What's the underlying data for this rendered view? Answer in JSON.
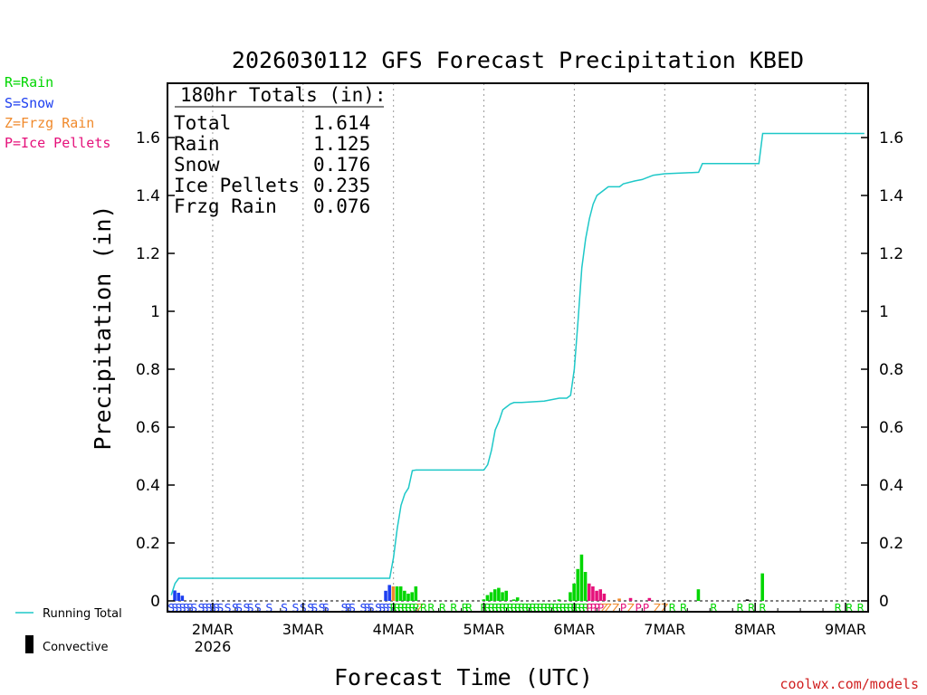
{
  "colors": {
    "rain": "#00d600",
    "snow": "#1c3ef0",
    "freezing_rain": "#f08a2c",
    "ice_pellets": "#e5107a",
    "running_total": "#1ec8c8",
    "convective": "#000000",
    "attribution": "#d02020",
    "grid": "#9a9a9a"
  },
  "legend": {
    "rain": "R=Rain",
    "snow": "S=Snow",
    "freezing_rain": "Z=Frzg Rain",
    "ice_pellets": "P=Ice Pellets",
    "running_total": "Running Total",
    "convective": "Convective"
  },
  "totals_box": {
    "header": "180hr Totals (in):",
    "rows": [
      {
        "label": "Total",
        "value": "1.614"
      },
      {
        "label": "Rain",
        "value": "1.125"
      },
      {
        "label": "Snow",
        "value": "0.176"
      },
      {
        "label": "Ice Pellets",
        "value": "0.235"
      },
      {
        "label": "Frzg Rain",
        "value": "0.076"
      }
    ]
  },
  "attribution": "coolwx.com/models",
  "chart_data": {
    "type": "bar",
    "title": "2026030112 GFS Forecast Precipitation KBED",
    "xlabel": "Forecast Time (UTC)",
    "ylabel": "Precipitation (in)",
    "x_units": "hours since 2026-03-01 12Z",
    "xlim": [
      0,
      186
    ],
    "ylim": [
      0,
      1.8
    ],
    "yticks": [
      0,
      0.2,
      0.4,
      0.6,
      0.8,
      1,
      1.2,
      1.4,
      1.6
    ],
    "ytick_labels": [
      "0",
      "0.2",
      "0.4",
      "0.6",
      "0.8",
      "1",
      "1.2",
      "1.4",
      "1.6"
    ],
    "xticks": [
      {
        "x": 12,
        "label": "2MAR",
        "sublabel": "2026"
      },
      {
        "x": 36,
        "label": "3MAR",
        "sublabel": ""
      },
      {
        "x": 60,
        "label": "4MAR",
        "sublabel": ""
      },
      {
        "x": 84,
        "label": "5MAR",
        "sublabel": ""
      },
      {
        "x": 108,
        "label": "6MAR",
        "sublabel": ""
      },
      {
        "x": 132,
        "label": "7MAR",
        "sublabel": ""
      },
      {
        "x": 156,
        "label": "8MAR",
        "sublabel": ""
      },
      {
        "x": 180,
        "label": "9MAR",
        "sublabel": ""
      }
    ],
    "bars": [
      {
        "x": 2,
        "w": 1,
        "v": 0.036,
        "t": "S"
      },
      {
        "x": 3,
        "w": 1,
        "v": 0.028,
        "t": "S"
      },
      {
        "x": 4,
        "w": 1,
        "v": 0.018,
        "t": "S"
      },
      {
        "x": 58,
        "w": 1,
        "v": 0.035,
        "t": "S"
      },
      {
        "x": 59,
        "w": 1,
        "v": 0.055,
        "t": "S"
      },
      {
        "x": 60,
        "w": 1,
        "v": 0.05,
        "t": "Z"
      },
      {
        "x": 61,
        "w": 1,
        "v": 0.05,
        "t": "R"
      },
      {
        "x": 62,
        "w": 1,
        "v": 0.05,
        "t": "R"
      },
      {
        "x": 63,
        "w": 1,
        "v": 0.035,
        "t": "R"
      },
      {
        "x": 64,
        "w": 1,
        "v": 0.025,
        "t": "R"
      },
      {
        "x": 65,
        "w": 1,
        "v": 0.03,
        "t": "R"
      },
      {
        "x": 66,
        "w": 1,
        "v": 0.05,
        "t": "R"
      },
      {
        "x": 84,
        "w": 1,
        "v": 0.005,
        "t": "R"
      },
      {
        "x": 85,
        "w": 1,
        "v": 0.02,
        "t": "R"
      },
      {
        "x": 86,
        "w": 1,
        "v": 0.03,
        "t": "R"
      },
      {
        "x": 87,
        "w": 1,
        "v": 0.04,
        "t": "R"
      },
      {
        "x": 88,
        "w": 1,
        "v": 0.045,
        "t": "R"
      },
      {
        "x": 89,
        "w": 1,
        "v": 0.03,
        "t": "R"
      },
      {
        "x": 90,
        "w": 1,
        "v": 0.035,
        "t": "R"
      },
      {
        "x": 92,
        "w": 1,
        "v": 0.005,
        "t": "R"
      },
      {
        "x": 93,
        "w": 1,
        "v": 0.012,
        "t": "R"
      },
      {
        "x": 104,
        "w": 1,
        "v": 0.005,
        "t": "R"
      },
      {
        "x": 107,
        "w": 1,
        "v": 0.03,
        "t": "R"
      },
      {
        "x": 108,
        "w": 1,
        "v": 0.06,
        "t": "R"
      },
      {
        "x": 109,
        "w": 1,
        "v": 0.11,
        "t": "R"
      },
      {
        "x": 110,
        "w": 1,
        "v": 0.16,
        "t": "R"
      },
      {
        "x": 111,
        "w": 1,
        "v": 0.1,
        "t": "R"
      },
      {
        "x": 112,
        "w": 1,
        "v": 0.06,
        "t": "P"
      },
      {
        "x": 113,
        "w": 1,
        "v": 0.05,
        "t": "P"
      },
      {
        "x": 114,
        "w": 1,
        "v": 0.035,
        "t": "P"
      },
      {
        "x": 115,
        "w": 1,
        "v": 0.04,
        "t": "P"
      },
      {
        "x": 116,
        "w": 1,
        "v": 0.025,
        "t": "P"
      },
      {
        "x": 120,
        "w": 1,
        "v": 0.008,
        "t": "Z"
      },
      {
        "x": 123,
        "w": 1,
        "v": 0.01,
        "t": "P"
      },
      {
        "x": 128,
        "w": 1,
        "v": 0.01,
        "t": "P"
      },
      {
        "x": 141,
        "w": 1,
        "v": 0.04,
        "t": "R"
      },
      {
        "x": 154,
        "w": 1,
        "v": 0.005,
        "t": "C"
      },
      {
        "x": 158,
        "w": 1,
        "v": 0.095,
        "t": "R"
      }
    ],
    "ptype_strip": [
      {
        "x": 1,
        "t": "S"
      },
      {
        "x": 2,
        "t": "S"
      },
      {
        "x": 3,
        "t": "S"
      },
      {
        "x": 4,
        "t": "S"
      },
      {
        "x": 5,
        "t": "S"
      },
      {
        "x": 6,
        "t": "S"
      },
      {
        "x": 7,
        "t": "S"
      },
      {
        "x": 9,
        "t": "S"
      },
      {
        "x": 10,
        "t": "S"
      },
      {
        "x": 11,
        "t": "S"
      },
      {
        "x": 12,
        "t": "S"
      },
      {
        "x": 13,
        "t": "S"
      },
      {
        "x": 14,
        "t": "S"
      },
      {
        "x": 16,
        "t": "S"
      },
      {
        "x": 18,
        "t": "S"
      },
      {
        "x": 19,
        "t": "S"
      },
      {
        "x": 21,
        "t": "S"
      },
      {
        "x": 22,
        "t": "S"
      },
      {
        "x": 24,
        "t": "S"
      },
      {
        "x": 27,
        "t": "S"
      },
      {
        "x": 31,
        "t": "S"
      },
      {
        "x": 34,
        "t": "S"
      },
      {
        "x": 36,
        "t": "S"
      },
      {
        "x": 38,
        "t": "S"
      },
      {
        "x": 39,
        "t": "S"
      },
      {
        "x": 41,
        "t": "S"
      },
      {
        "x": 42,
        "t": "S"
      },
      {
        "x": 47,
        "t": "S"
      },
      {
        "x": 48,
        "t": "S"
      },
      {
        "x": 49,
        "t": "S"
      },
      {
        "x": 52,
        "t": "S"
      },
      {
        "x": 53,
        "t": "S"
      },
      {
        "x": 54,
        "t": "S"
      },
      {
        "x": 56,
        "t": "S"
      },
      {
        "x": 57,
        "t": "S"
      },
      {
        "x": 58,
        "t": "S"
      },
      {
        "x": 59,
        "t": "S"
      },
      {
        "x": 60,
        "t": "R"
      },
      {
        "x": 61,
        "t": "R"
      },
      {
        "x": 62,
        "t": "R"
      },
      {
        "x": 63,
        "t": "R"
      },
      {
        "x": 64,
        "t": "R"
      },
      {
        "x": 65,
        "t": "R"
      },
      {
        "x": 66,
        "t": "R"
      },
      {
        "x": 67,
        "t": "Z"
      },
      {
        "x": 68,
        "t": "R"
      },
      {
        "x": 70,
        "t": "R"
      },
      {
        "x": 73,
        "t": "R"
      },
      {
        "x": 76,
        "t": "R"
      },
      {
        "x": 79,
        "t": "R"
      },
      {
        "x": 80,
        "t": "R"
      },
      {
        "x": 84,
        "t": "R"
      },
      {
        "x": 85,
        "t": "R"
      },
      {
        "x": 86,
        "t": "R"
      },
      {
        "x": 87,
        "t": "R"
      },
      {
        "x": 88,
        "t": "R"
      },
      {
        "x": 89,
        "t": "R"
      },
      {
        "x": 90,
        "t": "R"
      },
      {
        "x": 91,
        "t": "R"
      },
      {
        "x": 92,
        "t": "R"
      },
      {
        "x": 93,
        "t": "R"
      },
      {
        "x": 94,
        "t": "R"
      },
      {
        "x": 95,
        "t": "R"
      },
      {
        "x": 96,
        "t": "R"
      },
      {
        "x": 97,
        "t": "R"
      },
      {
        "x": 98,
        "t": "R"
      },
      {
        "x": 99,
        "t": "R"
      },
      {
        "x": 100,
        "t": "R"
      },
      {
        "x": 101,
        "t": "R"
      },
      {
        "x": 102,
        "t": "R"
      },
      {
        "x": 103,
        "t": "R"
      },
      {
        "x": 104,
        "t": "R"
      },
      {
        "x": 105,
        "t": "R"
      },
      {
        "x": 106,
        "t": "R"
      },
      {
        "x": 107,
        "t": "R"
      },
      {
        "x": 108,
        "t": "R"
      },
      {
        "x": 109,
        "t": "R"
      },
      {
        "x": 110,
        "t": "R"
      },
      {
        "x": 111,
        "t": "R"
      },
      {
        "x": 112,
        "t": "P"
      },
      {
        "x": 113,
        "t": "P"
      },
      {
        "x": 114,
        "t": "P"
      },
      {
        "x": 115,
        "t": "P"
      },
      {
        "x": 116,
        "t": "Z"
      },
      {
        "x": 117,
        "t": "Z"
      },
      {
        "x": 119,
        "t": "Z"
      },
      {
        "x": 121,
        "t": "P"
      },
      {
        "x": 123,
        "t": "Z"
      },
      {
        "x": 125,
        "t": "P"
      },
      {
        "x": 127,
        "t": "P"
      },
      {
        "x": 130,
        "t": "Z"
      },
      {
        "x": 132,
        "t": "Z"
      },
      {
        "x": 134,
        "t": "R"
      },
      {
        "x": 137,
        "t": "R"
      },
      {
        "x": 145,
        "t": "R"
      },
      {
        "x": 152,
        "t": "R"
      },
      {
        "x": 155,
        "t": "R"
      },
      {
        "x": 158,
        "t": "R"
      },
      {
        "x": 178,
        "t": "R"
      },
      {
        "x": 181,
        "t": "R"
      },
      {
        "x": 184,
        "t": "R"
      }
    ],
    "running_total": {
      "x": [
        1,
        2,
        3,
        4,
        59,
        60,
        61,
        62,
        63,
        64,
        65,
        66,
        67,
        84,
        85,
        86,
        87,
        88,
        89,
        90,
        91,
        92,
        93,
        94,
        100,
        104,
        106,
        107,
        108,
        109,
        110,
        111,
        112,
        113,
        114,
        116,
        117,
        120,
        121,
        124,
        126,
        128,
        129,
        132,
        141,
        142,
        157,
        158,
        185
      ],
      "y": [
        0.02,
        0.06,
        0.078,
        0.078,
        0.078,
        0.15,
        0.25,
        0.33,
        0.37,
        0.39,
        0.45,
        0.452,
        0.452,
        0.452,
        0.47,
        0.52,
        0.59,
        0.62,
        0.66,
        0.67,
        0.68,
        0.685,
        0.685,
        0.685,
        0.69,
        0.7,
        0.7,
        0.71,
        0.8,
        0.97,
        1.15,
        1.25,
        1.32,
        1.37,
        1.4,
        1.42,
        1.43,
        1.43,
        1.44,
        1.45,
        1.455,
        1.465,
        1.47,
        1.475,
        1.48,
        1.51,
        1.51,
        1.614,
        1.614
      ]
    }
  }
}
